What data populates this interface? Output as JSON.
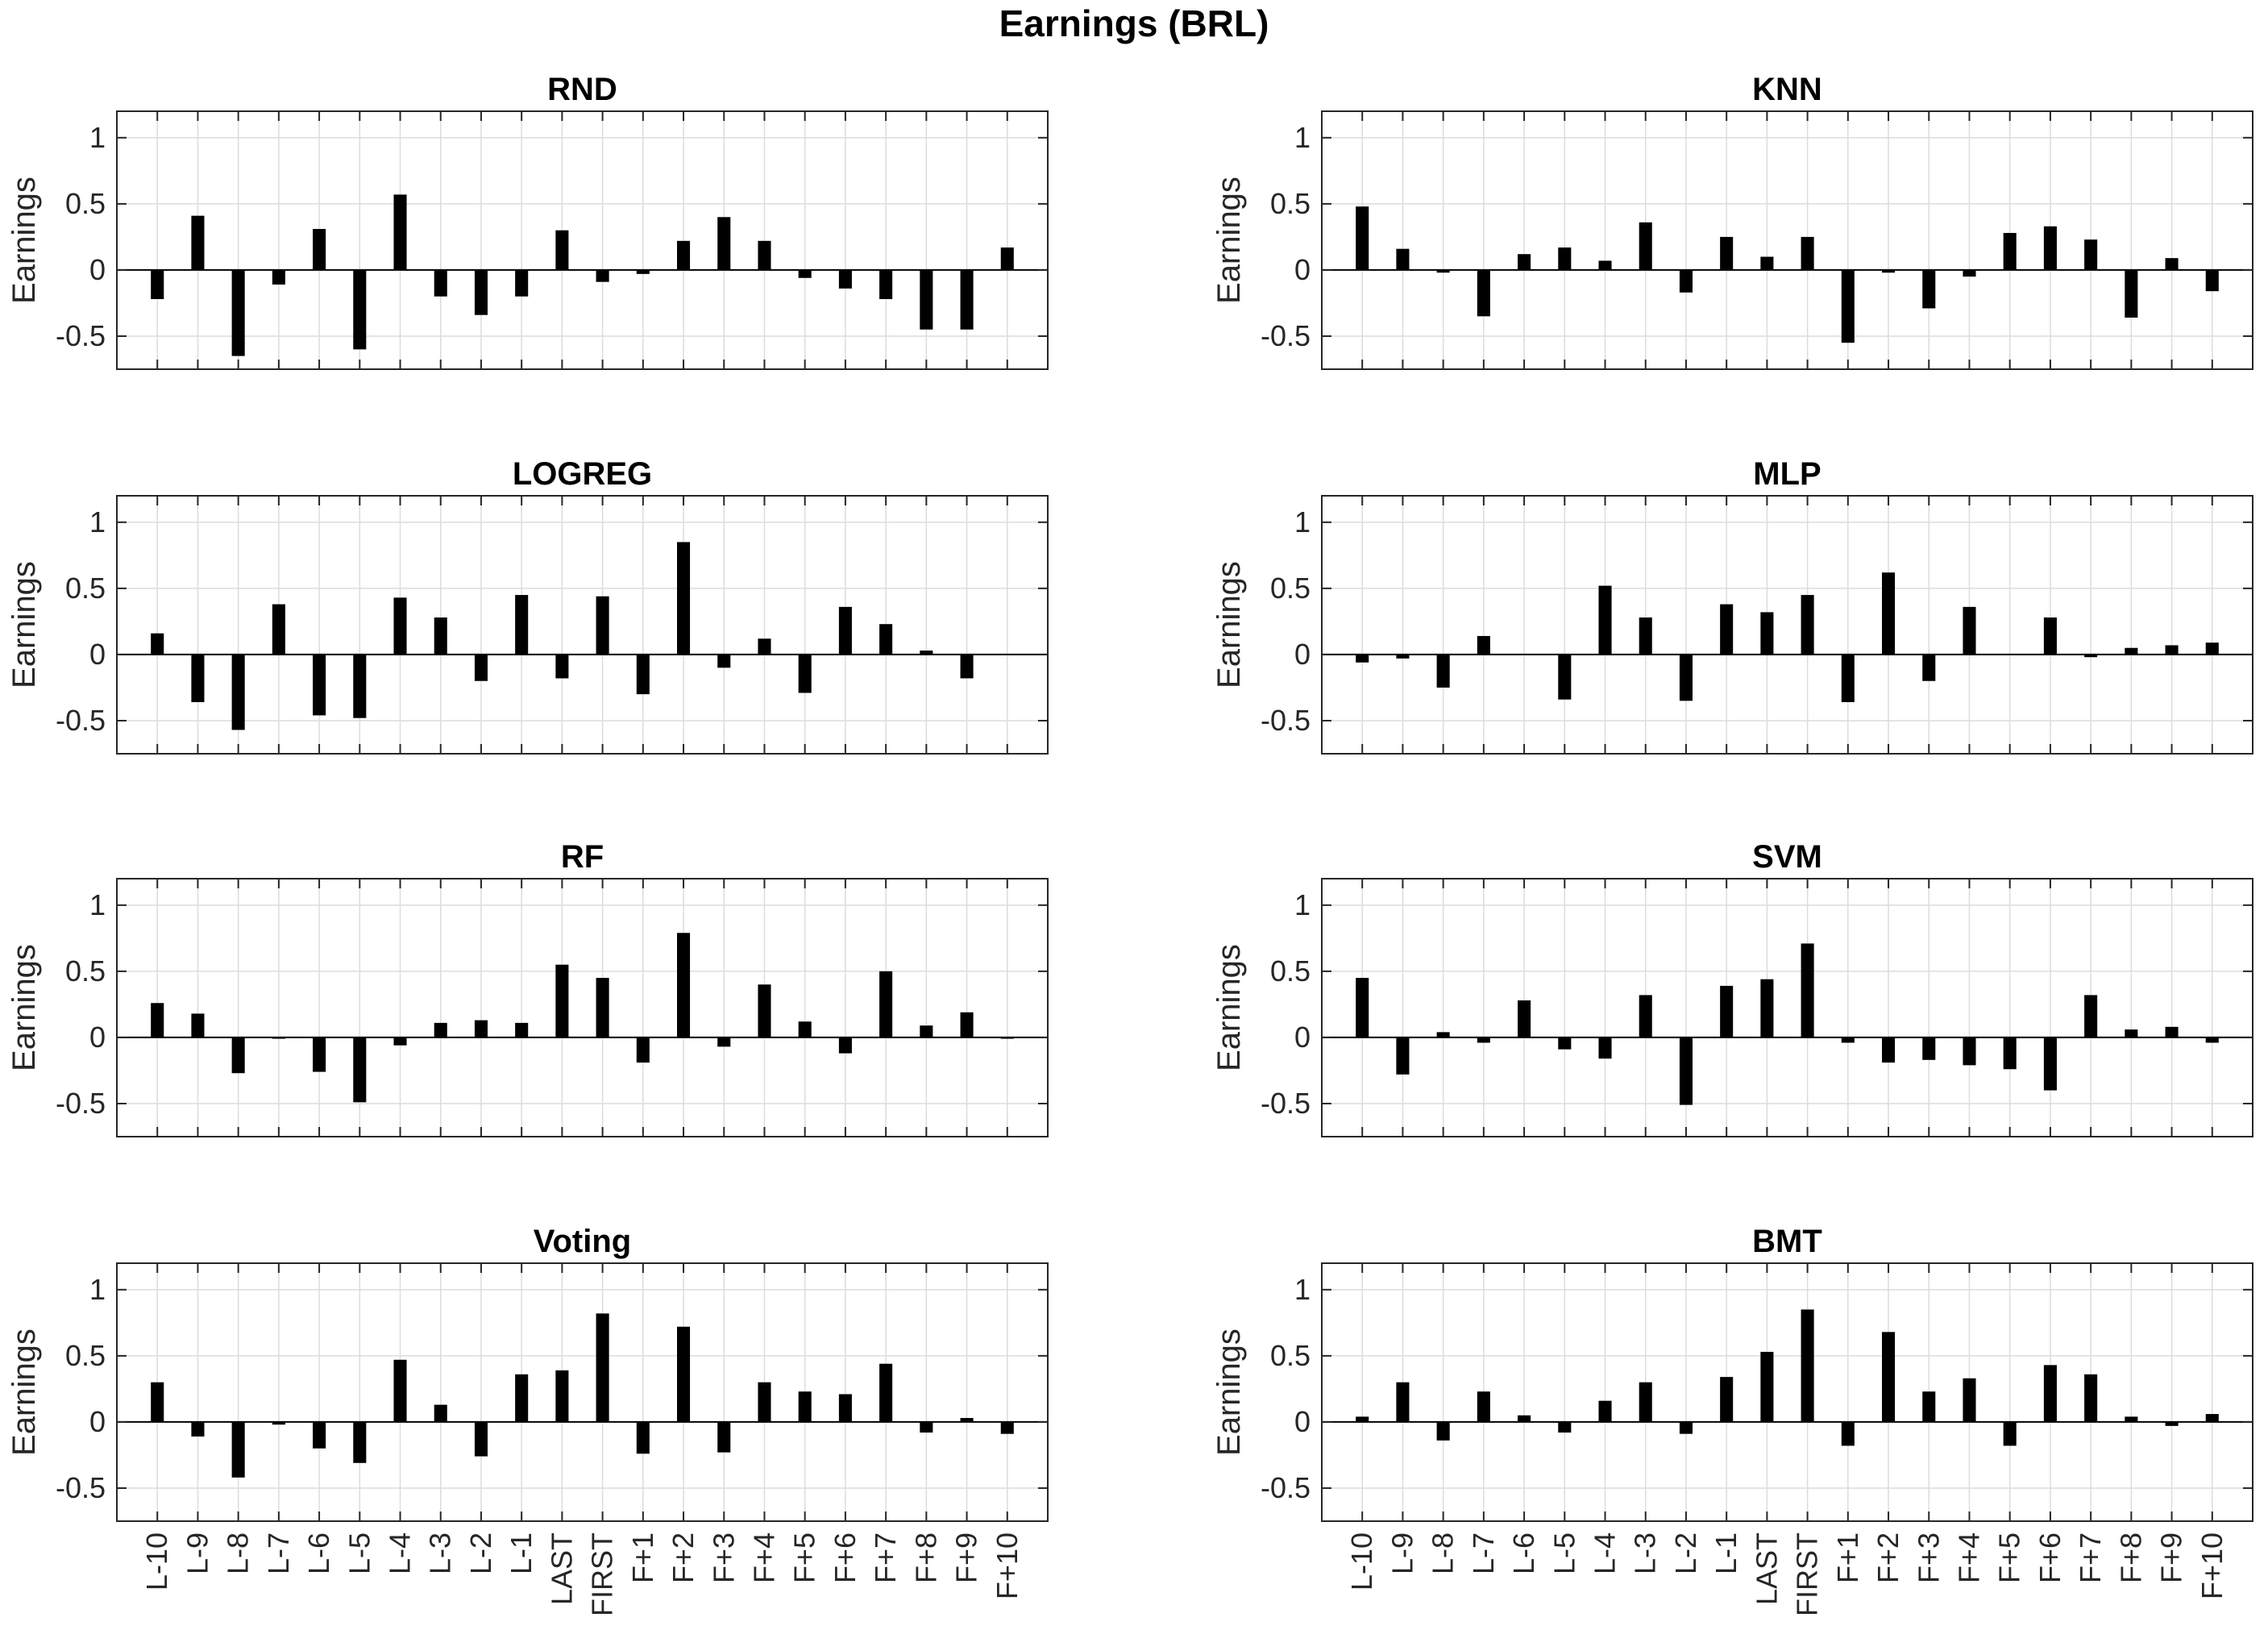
{
  "figure": {
    "title": "Earnings (BRL)"
  },
  "chart_data": [
    {
      "type": "bar",
      "title": "RND",
      "ylabel": "Earnings",
      "xlabel": "",
      "ylim": [
        -0.75,
        1.2
      ],
      "yticks": [
        -0.5,
        0,
        0.5,
        1
      ],
      "ytick_labels": [
        "-0.5",
        "0",
        "0.5",
        "1"
      ],
      "grid": true,
      "show_xtick_labels": false,
      "categories": [
        "L-10",
        "L-9",
        "L-8",
        "L-7",
        "L-6",
        "L-5",
        "L-4",
        "L-3",
        "L-2",
        "L-1",
        "LAST",
        "FIRST",
        "F+1",
        "F+2",
        "F+3",
        "F+4",
        "F+5",
        "F+6",
        "F+7",
        "F+8",
        "F+9",
        "F+10"
      ],
      "values": [
        -0.22,
        0.41,
        -0.65,
        -0.11,
        0.31,
        -0.6,
        0.57,
        -0.2,
        -0.34,
        -0.2,
        0.3,
        -0.09,
        -0.03,
        0.22,
        0.4,
        0.22,
        -0.06,
        -0.14,
        -0.22,
        -0.45,
        -0.45,
        0.17
      ]
    },
    {
      "type": "bar",
      "title": "KNN",
      "ylabel": "Earnings",
      "xlabel": "",
      "ylim": [
        -0.75,
        1.2
      ],
      "yticks": [
        -0.5,
        0,
        0.5,
        1
      ],
      "ytick_labels": [
        "-0.5",
        "0",
        "0.5",
        "1"
      ],
      "grid": true,
      "show_xtick_labels": false,
      "categories": [
        "L-10",
        "L-9",
        "L-8",
        "L-7",
        "L-6",
        "L-5",
        "L-4",
        "L-3",
        "L-2",
        "L-1",
        "LAST",
        "FIRST",
        "F+1",
        "F+2",
        "F+3",
        "F+4",
        "F+5",
        "F+6",
        "F+7",
        "F+8",
        "F+9",
        "F+10"
      ],
      "values": [
        0.48,
        0.16,
        -0.02,
        -0.35,
        0.12,
        0.17,
        0.07,
        0.36,
        -0.17,
        0.25,
        0.1,
        0.25,
        -0.55,
        -0.02,
        -0.29,
        -0.05,
        0.28,
        0.33,
        0.23,
        -0.36,
        0.09,
        -0.16
      ]
    },
    {
      "type": "bar",
      "title": "LOGREG",
      "ylabel": "Earnings",
      "xlabel": "",
      "ylim": [
        -0.75,
        1.2
      ],
      "yticks": [
        -0.5,
        0,
        0.5,
        1
      ],
      "ytick_labels": [
        "-0.5",
        "0",
        "0.5",
        "1"
      ],
      "grid": true,
      "show_xtick_labels": false,
      "categories": [
        "L-10",
        "L-9",
        "L-8",
        "L-7",
        "L-6",
        "L-5",
        "L-4",
        "L-3",
        "L-2",
        "L-1",
        "LAST",
        "FIRST",
        "F+1",
        "F+2",
        "F+3",
        "F+4",
        "F+5",
        "F+6",
        "F+7",
        "F+8",
        "F+9",
        "F+10"
      ],
      "values": [
        0.16,
        -0.36,
        -0.57,
        0.38,
        -0.46,
        -0.48,
        0.43,
        0.28,
        -0.2,
        0.45,
        -0.18,
        0.44,
        -0.3,
        0.85,
        -0.1,
        0.12,
        -0.29,
        0.36,
        0.23,
        0.03,
        -0.18,
        0.0
      ]
    },
    {
      "type": "bar",
      "title": "MLP",
      "ylabel": "Earnings",
      "xlabel": "",
      "ylim": [
        -0.75,
        1.2
      ],
      "yticks": [
        -0.5,
        0,
        0.5,
        1
      ],
      "ytick_labels": [
        "-0.5",
        "0",
        "0.5",
        "1"
      ],
      "grid": true,
      "show_xtick_labels": false,
      "categories": [
        "L-10",
        "L-9",
        "L-8",
        "L-7",
        "L-6",
        "L-5",
        "L-4",
        "L-3",
        "L-2",
        "L-1",
        "LAST",
        "FIRST",
        "F+1",
        "F+2",
        "F+3",
        "F+4",
        "F+5",
        "F+6",
        "F+7",
        "F+8",
        "F+9",
        "F+10"
      ],
      "values": [
        -0.06,
        -0.03,
        -0.25,
        0.14,
        0.0,
        -0.34,
        0.52,
        0.28,
        -0.35,
        0.38,
        0.32,
        0.45,
        -0.36,
        0.62,
        -0.2,
        0.36,
        0.0,
        0.28,
        -0.02,
        0.05,
        0.07,
        0.09
      ]
    },
    {
      "type": "bar",
      "title": "RF",
      "ylabel": "Earnings",
      "xlabel": "",
      "ylim": [
        -0.75,
        1.2
      ],
      "yticks": [
        -0.5,
        0,
        0.5,
        1
      ],
      "ytick_labels": [
        "-0.5",
        "0",
        "0.5",
        "1"
      ],
      "grid": true,
      "show_xtick_labels": false,
      "categories": [
        "L-10",
        "L-9",
        "L-8",
        "L-7",
        "L-6",
        "L-5",
        "L-4",
        "L-3",
        "L-2",
        "L-1",
        "LAST",
        "FIRST",
        "F+1",
        "F+2",
        "F+3",
        "F+4",
        "F+5",
        "F+6",
        "F+7",
        "F+8",
        "F+9",
        "F+10"
      ],
      "values": [
        0.26,
        0.18,
        -0.27,
        -0.01,
        -0.26,
        -0.49,
        -0.06,
        0.11,
        0.13,
        0.11,
        0.55,
        0.45,
        -0.19,
        0.79,
        -0.07,
        0.4,
        0.12,
        -0.12,
        0.5,
        0.09,
        0.19,
        -0.01
      ]
    },
    {
      "type": "bar",
      "title": "SVM",
      "ylabel": "Earnings",
      "xlabel": "",
      "ylim": [
        -0.75,
        1.2
      ],
      "yticks": [
        -0.5,
        0,
        0.5,
        1
      ],
      "ytick_labels": [
        "-0.5",
        "0",
        "0.5",
        "1"
      ],
      "grid": true,
      "show_xtick_labels": false,
      "categories": [
        "L-10",
        "L-9",
        "L-8",
        "L-7",
        "L-6",
        "L-5",
        "L-4",
        "L-3",
        "L-2",
        "L-1",
        "LAST",
        "FIRST",
        "F+1",
        "F+2",
        "F+3",
        "F+4",
        "F+5",
        "F+6",
        "F+7",
        "F+8",
        "F+9",
        "F+10"
      ],
      "values": [
        0.45,
        -0.28,
        0.04,
        -0.04,
        0.28,
        -0.09,
        -0.16,
        0.32,
        -0.51,
        0.39,
        0.44,
        0.71,
        -0.04,
        -0.19,
        -0.17,
        -0.21,
        -0.24,
        -0.4,
        0.32,
        0.06,
        0.08,
        -0.04
      ]
    },
    {
      "type": "bar",
      "title": "Voting",
      "ylabel": "Earnings",
      "xlabel": "",
      "ylim": [
        -0.75,
        1.2
      ],
      "yticks": [
        -0.5,
        0,
        0.5,
        1
      ],
      "ytick_labels": [
        "-0.5",
        "0",
        "0.5",
        "1"
      ],
      "grid": true,
      "show_xtick_labels": true,
      "categories": [
        "L-10",
        "L-9",
        "L-8",
        "L-7",
        "L-6",
        "L-5",
        "L-4",
        "L-3",
        "L-2",
        "L-1",
        "LAST",
        "FIRST",
        "F+1",
        "F+2",
        "F+3",
        "F+4",
        "F+5",
        "F+6",
        "F+7",
        "F+8",
        "F+9",
        "F+10"
      ],
      "values": [
        0.3,
        -0.11,
        -0.42,
        -0.02,
        -0.2,
        -0.31,
        0.47,
        0.13,
        -0.26,
        0.36,
        0.39,
        0.82,
        -0.24,
        0.72,
        -0.23,
        0.3,
        0.23,
        0.21,
        0.44,
        -0.08,
        0.03,
        -0.09
      ]
    },
    {
      "type": "bar",
      "title": "BMT",
      "ylabel": "Earnings",
      "xlabel": "",
      "ylim": [
        -0.75,
        1.2
      ],
      "yticks": [
        -0.5,
        0,
        0.5,
        1
      ],
      "ytick_labels": [
        "-0.5",
        "0",
        "0.5",
        "1"
      ],
      "grid": true,
      "show_xtick_labels": true,
      "categories": [
        "L-10",
        "L-9",
        "L-8",
        "L-7",
        "L-6",
        "L-5",
        "L-4",
        "L-3",
        "L-2",
        "L-1",
        "LAST",
        "FIRST",
        "F+1",
        "F+2",
        "F+3",
        "F+4",
        "F+5",
        "F+6",
        "F+7",
        "F+8",
        "F+9",
        "F+10"
      ],
      "values": [
        0.04,
        0.3,
        -0.14,
        0.23,
        0.05,
        -0.08,
        0.16,
        0.3,
        -0.09,
        0.34,
        0.53,
        0.85,
        -0.18,
        0.68,
        0.23,
        0.33,
        -0.18,
        0.43,
        0.36,
        0.04,
        -0.03,
        0.06
      ]
    }
  ]
}
